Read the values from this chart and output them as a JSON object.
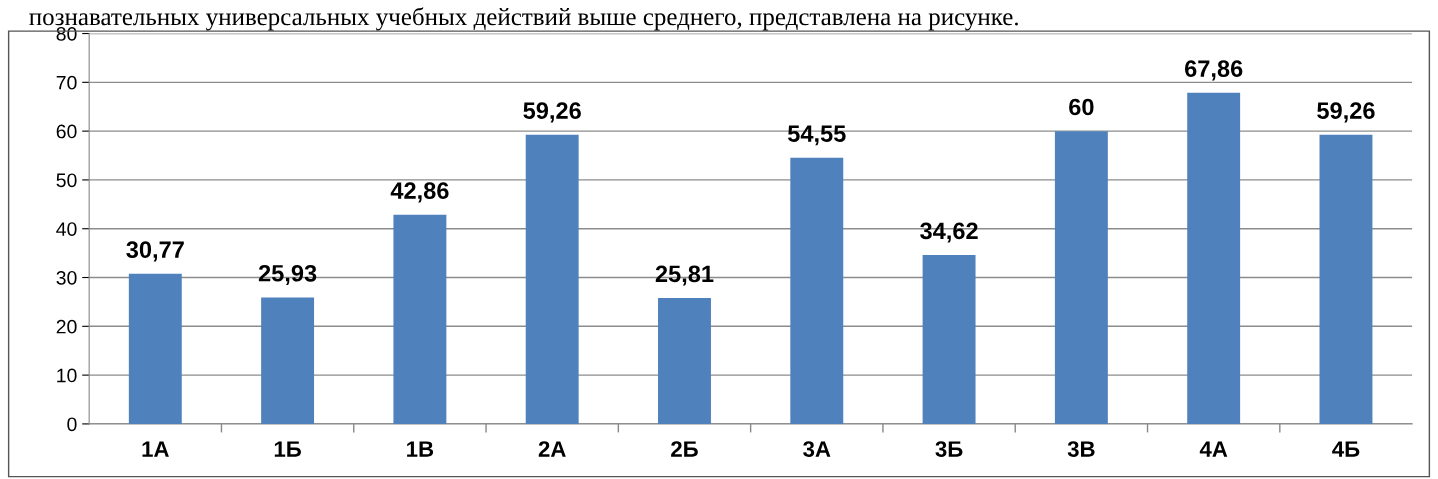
{
  "chart_data": {
    "type": "bar",
    "categories": [
      "1А",
      "1Б",
      "1В",
      "2А",
      "2Б",
      "3А",
      "3Б",
      "3В",
      "4А",
      "4Б"
    ],
    "values": [
      30.77,
      25.93,
      42.86,
      59.26,
      25.81,
      54.55,
      34.62,
      60,
      67.86,
      59.26
    ],
    "value_labels": [
      "30,77",
      "25,93",
      "42,86",
      "59,26",
      "25,81",
      "54,55",
      "34,62",
      "60",
      "67,86",
      "59,26"
    ],
    "color": "#4f81bd",
    "ylim": [
      0,
      80
    ],
    "yticks": [
      0,
      10,
      20,
      30,
      40,
      50,
      60,
      70,
      80
    ],
    "grid": "y",
    "legend": false,
    "annotations": [
      "познавательных универсальных учебных действий выше среднего, представлена на рисунке."
    ]
  }
}
